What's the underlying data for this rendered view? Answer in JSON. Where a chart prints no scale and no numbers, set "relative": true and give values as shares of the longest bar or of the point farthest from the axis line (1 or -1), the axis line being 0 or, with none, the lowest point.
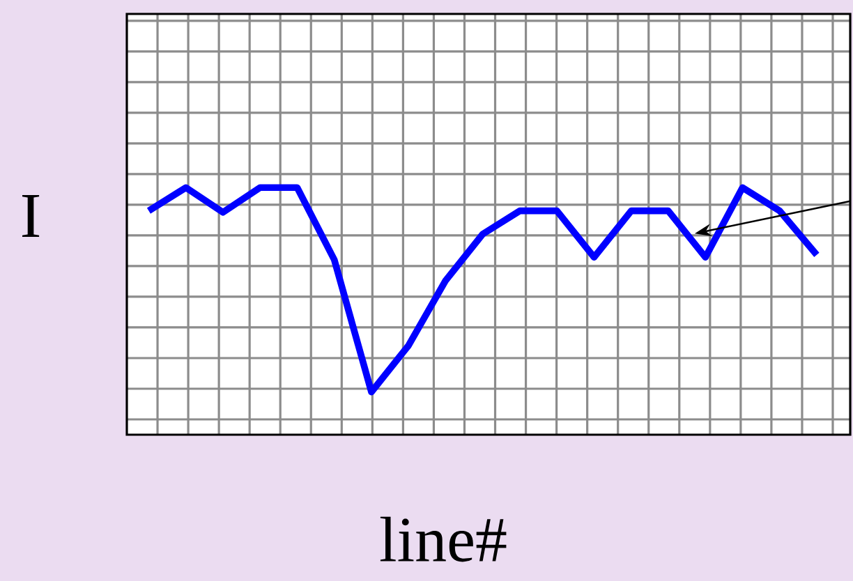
{
  "chart_data": {
    "type": "line",
    "xlabel": "line#",
    "ylabel": "I",
    "relative": true,
    "grid": true,
    "marker": "none",
    "color": "#0000ff",
    "categories": [
      null,
      null,
      null,
      null,
      null,
      null,
      null,
      null,
      null,
      null,
      null,
      null,
      null,
      null,
      null,
      null,
      null,
      null,
      null
    ],
    "values": [
      0.906,
      1,
      0.9,
      1,
      1,
      0.708,
      0.173,
      0.361,
      0.624,
      0.812,
      0.906,
      0.906,
      0.718,
      0.906,
      0.906,
      0.718,
      1,
      0.906,
      0.728
    ]
  }
}
